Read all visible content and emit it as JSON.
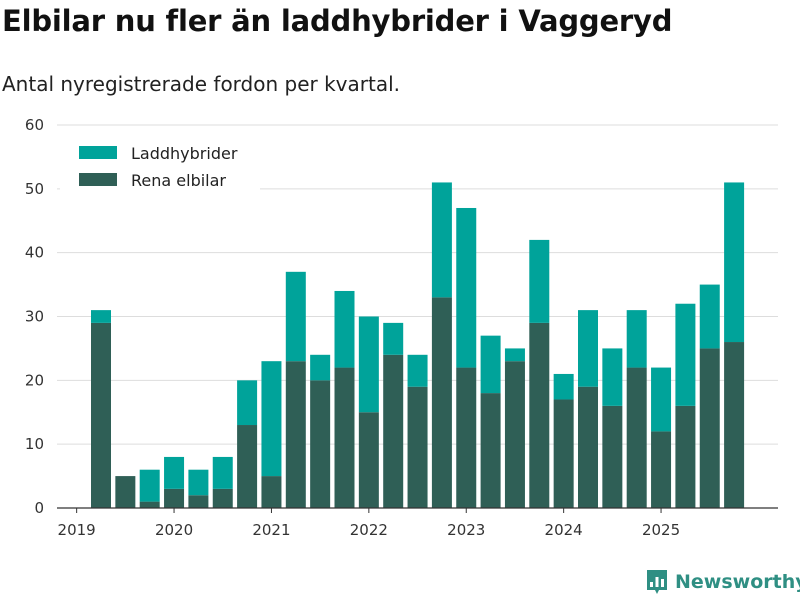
{
  "title": "Elbilar nu fler än laddhybrider i Vaggeryd",
  "subtitle": "Antal nyregistrerade fordon per kvartal.",
  "brand": {
    "name": "Newsworthy",
    "icon": "newsworthy-logo-icon"
  },
  "colors": {
    "hybrid": "#00a39a",
    "electric": "#2f5f56",
    "grid": "#dddddd",
    "axis": "#333333"
  },
  "chart_data": {
    "type": "bar",
    "stacked": true,
    "title": "Elbilar nu fler än laddhybrider i Vaggeryd",
    "subtitle": "Antal nyregistrerade fordon per kvartal.",
    "xlabel": "",
    "ylabel": "",
    "ylim": [
      0,
      60
    ],
    "yticks": [
      0,
      10,
      20,
      30,
      40,
      50,
      60
    ],
    "grid": true,
    "legend_position": "top-left",
    "categories": [
      "2019 Q2",
      "2019 Q3",
      "2019 Q4",
      "2020 Q1",
      "2020 Q2",
      "2020 Q3",
      "2020 Q4",
      "2021 Q1",
      "2021 Q2",
      "2021 Q3",
      "2021 Q4",
      "2022 Q1",
      "2022 Q2",
      "2022 Q3",
      "2022 Q4",
      "2023 Q1",
      "2023 Q2",
      "2023 Q3",
      "2023 Q4",
      "2024 Q1",
      "2024 Q2",
      "2024 Q3",
      "2024 Q4",
      "2025 Q1",
      "2025 Q2",
      "2025 Q3",
      "2025 Q4"
    ],
    "x_tick_labels": [
      {
        "label": "2019",
        "index": -1
      },
      {
        "label": "2020",
        "index": 3
      },
      {
        "label": "2021",
        "index": 7
      },
      {
        "label": "2022",
        "index": 11
      },
      {
        "label": "2023",
        "index": 15
      },
      {
        "label": "2024",
        "index": 19
      },
      {
        "label": "2025",
        "index": 23
      }
    ],
    "series": [
      {
        "name": "Rena elbilar",
        "color": "#2f5f56",
        "values": [
          29,
          5,
          1,
          3,
          2,
          3,
          13,
          5,
          23,
          20,
          22,
          15,
          24,
          19,
          33,
          22,
          18,
          23,
          29,
          17,
          19,
          16,
          22,
          12,
          16,
          25,
          26
        ]
      },
      {
        "name": "Laddhybrider",
        "color": "#00a39a",
        "values": [
          2,
          0,
          5,
          5,
          4,
          5,
          7,
          18,
          14,
          4,
          12,
          15,
          5,
          5,
          18,
          25,
          9,
          2,
          13,
          4,
          12,
          9,
          9,
          10,
          16,
          10,
          25
        ]
      }
    ],
    "legend": [
      "Laddhybrider",
      "Rena elbilar"
    ]
  }
}
